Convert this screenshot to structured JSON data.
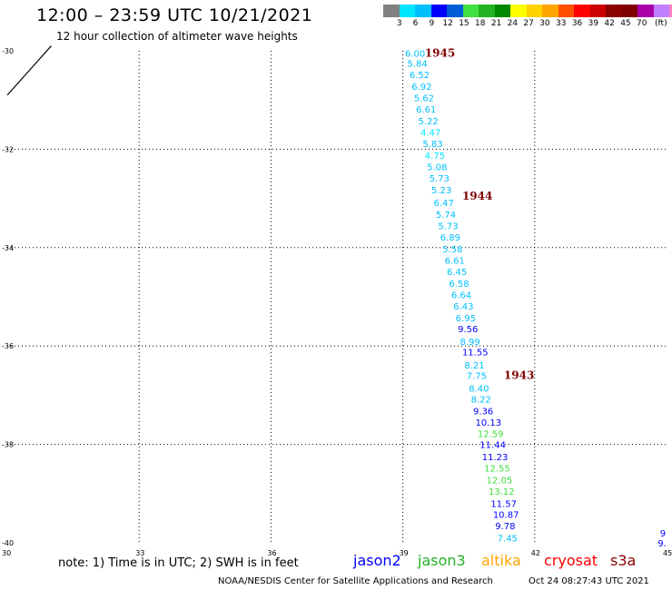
{
  "header": {
    "title": "12:00 – 23:59 UTC 10/21/2021",
    "subtitle": "12 hour collection of altimeter wave heights"
  },
  "colorbar": {
    "colors": [
      "#808080",
      "#00e6ff",
      "#00bfff",
      "#0000ff",
      "#005cd6",
      "#40e040",
      "#22b222",
      "#008800",
      "#ffff00",
      "#ffd200",
      "#ffa500",
      "#ff5000",
      "#ff0000",
      "#cc0000",
      "#8b0000",
      "#800000",
      "#aa00aa",
      "#c080ff",
      "#ff80c0",
      "#000000"
    ],
    "labels": [
      "3",
      "6",
      "9",
      "12",
      "15",
      "18",
      "21",
      "24",
      "27",
      "30",
      "33",
      "36",
      "39",
      "42",
      "45",
      "70",
      "(ft)"
    ]
  },
  "axes": {
    "lat_labels": [
      "-30",
      "-32",
      "-34",
      "-36",
      "-38",
      "-40"
    ],
    "lon_labels": [
      "30",
      "33",
      "36",
      "39",
      "42",
      "45"
    ]
  },
  "chart_data": {
    "type": "scatter",
    "xlabel": "",
    "ylabel": "",
    "xlim": [
      30,
      45
    ],
    "ylim": [
      -40,
      -30
    ],
    "grid": true,
    "track_times": [
      {
        "label": "1945",
        "lon": 39.5,
        "lat": -30.05
      },
      {
        "label": "1944",
        "lon": 40.35,
        "lat": -32.95
      },
      {
        "label": "1943",
        "lon": 41.3,
        "lat": -36.6
      }
    ],
    "points": [
      {
        "v": "6.00",
        "lon": 39.05,
        "lat": -30.05,
        "c": "#00bfff"
      },
      {
        "v": "5.84",
        "lon": 39.1,
        "lat": -30.25,
        "c": "#00bfff"
      },
      {
        "v": "6.52",
        "lon": 39.15,
        "lat": -30.48,
        "c": "#00bfff"
      },
      {
        "v": "6.92",
        "lon": 39.2,
        "lat": -30.72,
        "c": "#00bfff"
      },
      {
        "v": "5.62",
        "lon": 39.25,
        "lat": -30.95,
        "c": "#00bfff"
      },
      {
        "v": "6.61",
        "lon": 39.3,
        "lat": -31.18,
        "c": "#00bfff"
      },
      {
        "v": "5.22",
        "lon": 39.35,
        "lat": -31.42,
        "c": "#00bfff"
      },
      {
        "v": "4.47",
        "lon": 39.4,
        "lat": -31.65,
        "c": "#00e6ff"
      },
      {
        "v": "5.83",
        "lon": 39.45,
        "lat": -31.88,
        "c": "#00bfff"
      },
      {
        "v": "4.75",
        "lon": 39.5,
        "lat": -32.12,
        "c": "#00e6ff"
      },
      {
        "v": "5.08",
        "lon": 39.55,
        "lat": -32.35,
        "c": "#00bfff"
      },
      {
        "v": "5.73",
        "lon": 39.6,
        "lat": -32.58,
        "c": "#00bfff"
      },
      {
        "v": "5.23",
        "lon": 39.65,
        "lat": -32.82,
        "c": "#00bfff"
      },
      {
        "v": "6.47",
        "lon": 39.7,
        "lat": -33.08,
        "c": "#00bfff"
      },
      {
        "v": "5.74",
        "lon": 39.75,
        "lat": -33.32,
        "c": "#00bfff"
      },
      {
        "v": "5.73",
        "lon": 39.8,
        "lat": -33.55,
        "c": "#00bfff"
      },
      {
        "v": "6.89",
        "lon": 39.85,
        "lat": -33.78,
        "c": "#00bfff"
      },
      {
        "v": "5.58",
        "lon": 39.9,
        "lat": -34.02,
        "c": "#00bfff"
      },
      {
        "v": "6.61",
        "lon": 39.95,
        "lat": -34.25,
        "c": "#00bfff"
      },
      {
        "v": "6.45",
        "lon": 40.0,
        "lat": -34.48,
        "c": "#00bfff"
      },
      {
        "v": "6.58",
        "lon": 40.05,
        "lat": -34.72,
        "c": "#00bfff"
      },
      {
        "v": "6.64",
        "lon": 40.1,
        "lat": -34.95,
        "c": "#00bfff"
      },
      {
        "v": "6.43",
        "lon": 40.15,
        "lat": -35.18,
        "c": "#00bfff"
      },
      {
        "v": "6.95",
        "lon": 40.2,
        "lat": -35.42,
        "c": "#00bfff"
      },
      {
        "v": "9.56",
        "lon": 40.25,
        "lat": -35.65,
        "c": "#0000ff"
      },
      {
        "v": "8.99",
        "lon": 40.3,
        "lat": -35.9,
        "c": "#00bfff"
      },
      {
        "v": "11.55",
        "lon": 40.35,
        "lat": -36.12,
        "c": "#0000ff"
      },
      {
        "v": "8.21",
        "lon": 40.4,
        "lat": -36.38,
        "c": "#00bfff"
      },
      {
        "v": "7.75",
        "lon": 40.45,
        "lat": -36.6,
        "c": "#00bfff"
      },
      {
        "v": "8.40",
        "lon": 40.5,
        "lat": -36.85,
        "c": "#00bfff"
      },
      {
        "v": "8.22",
        "lon": 40.55,
        "lat": -37.08,
        "c": "#00bfff"
      },
      {
        "v": "9.36",
        "lon": 40.6,
        "lat": -37.32,
        "c": "#0000ff"
      },
      {
        "v": "10.13",
        "lon": 40.65,
        "lat": -37.55,
        "c": "#0000ff"
      },
      {
        "v": "12.59",
        "lon": 40.7,
        "lat": -37.78,
        "c": "#40e040"
      },
      {
        "v": "11.44",
        "lon": 40.75,
        "lat": -38.0,
        "c": "#0000ff"
      },
      {
        "v": "11.23",
        "lon": 40.8,
        "lat": -38.25,
        "c": "#0000ff"
      },
      {
        "v": "12.55",
        "lon": 40.85,
        "lat": -38.48,
        "c": "#40e040"
      },
      {
        "v": "12.05",
        "lon": 40.9,
        "lat": -38.72,
        "c": "#40e040"
      },
      {
        "v": "13.12",
        "lon": 40.95,
        "lat": -38.95,
        "c": "#40e040"
      },
      {
        "v": "11.57",
        "lon": 41.0,
        "lat": -39.2,
        "c": "#0000ff"
      },
      {
        "v": "10.87",
        "lon": 41.05,
        "lat": -39.42,
        "c": "#0000ff"
      },
      {
        "v": "9.78",
        "lon": 41.1,
        "lat": -39.65,
        "c": "#0000ff"
      },
      {
        "v": "7.45",
        "lon": 41.15,
        "lat": -39.9,
        "c": "#00bfff"
      },
      {
        "v": "9",
        "lon": 44.85,
        "lat": -39.8,
        "c": "#0000ff"
      },
      {
        "v": "9.",
        "lon": 44.8,
        "lat": -40.0,
        "c": "#0000ff"
      }
    ],
    "coastline": [
      [
        30.0,
        -30.9
      ],
      [
        30.4,
        -30.5
      ],
      [
        30.7,
        -30.2
      ],
      [
        31.0,
        -29.9
      ]
    ]
  },
  "footer": {
    "note": "note: 1) Time is in UTC; 2) SWH is in feet",
    "satellites": [
      {
        "name": "jason2",
        "color": "#0000ff"
      },
      {
        "name": "jason3",
        "color": "#22b222"
      },
      {
        "name": "altika",
        "color": "#ffa500"
      },
      {
        "name": "cryosat",
        "color": "#ff0000"
      },
      {
        "name": "s3a",
        "color": "#8b0000"
      }
    ],
    "credit": "NOAA/NESDIS Center for Satellite Applications and Research",
    "timestamp": "Oct 24 08:27:43 UTC 2021"
  }
}
